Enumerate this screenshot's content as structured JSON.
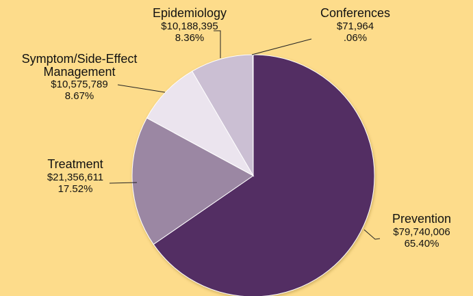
{
  "chart_data": {
    "type": "pie",
    "categories": [
      "Prevention",
      "Treatment",
      "Symptom/Side-Effect Management",
      "Epidemiology",
      "Conferences"
    ],
    "values": [
      79740006,
      21356611,
      10575789,
      10188395,
      71964
    ],
    "value_labels": [
      "$79,740,006",
      "$21,356,611",
      "$10,575,789",
      "$10,188,395",
      "$71,964"
    ],
    "percents": [
      65.4,
      17.52,
      8.67,
      8.36,
      0.06
    ],
    "percent_labels": [
      "65.40%",
      "17.52%",
      "8.67%",
      "8.36%",
      ".06%"
    ],
    "colors": [
      "#532e63",
      "#9b87a3",
      "#ebe4ee",
      "#cbbfd3",
      "#f4f0f6"
    ]
  }
}
